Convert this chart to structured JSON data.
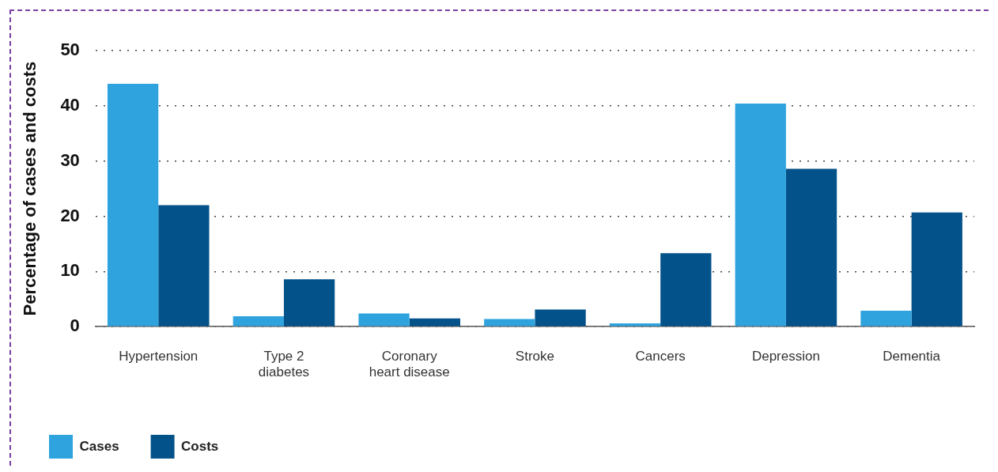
{
  "chart_data": {
    "type": "bar",
    "ylabel": "Percentage of cases and costs",
    "categories": [
      "Hypertension",
      "Type 2 diabetes",
      "Coronary heart disease",
      "Stroke",
      "Cancers",
      "Depression",
      "Dementia"
    ],
    "series": [
      {
        "name": "Cases",
        "color": "#2ea3de",
        "values": [
          44,
          1.9,
          2.4,
          1.4,
          0.6,
          40.4,
          2.9
        ]
      },
      {
        "name": "Costs",
        "color": "#03528a",
        "values": [
          22,
          8.6,
          1.5,
          3.1,
          13.3,
          28.6,
          20.7
        ]
      }
    ],
    "ylim": [
      0,
      50
    ],
    "yticks": [
      0,
      10,
      20,
      30,
      40,
      50
    ],
    "grid": "y",
    "legend": "bottom left"
  }
}
